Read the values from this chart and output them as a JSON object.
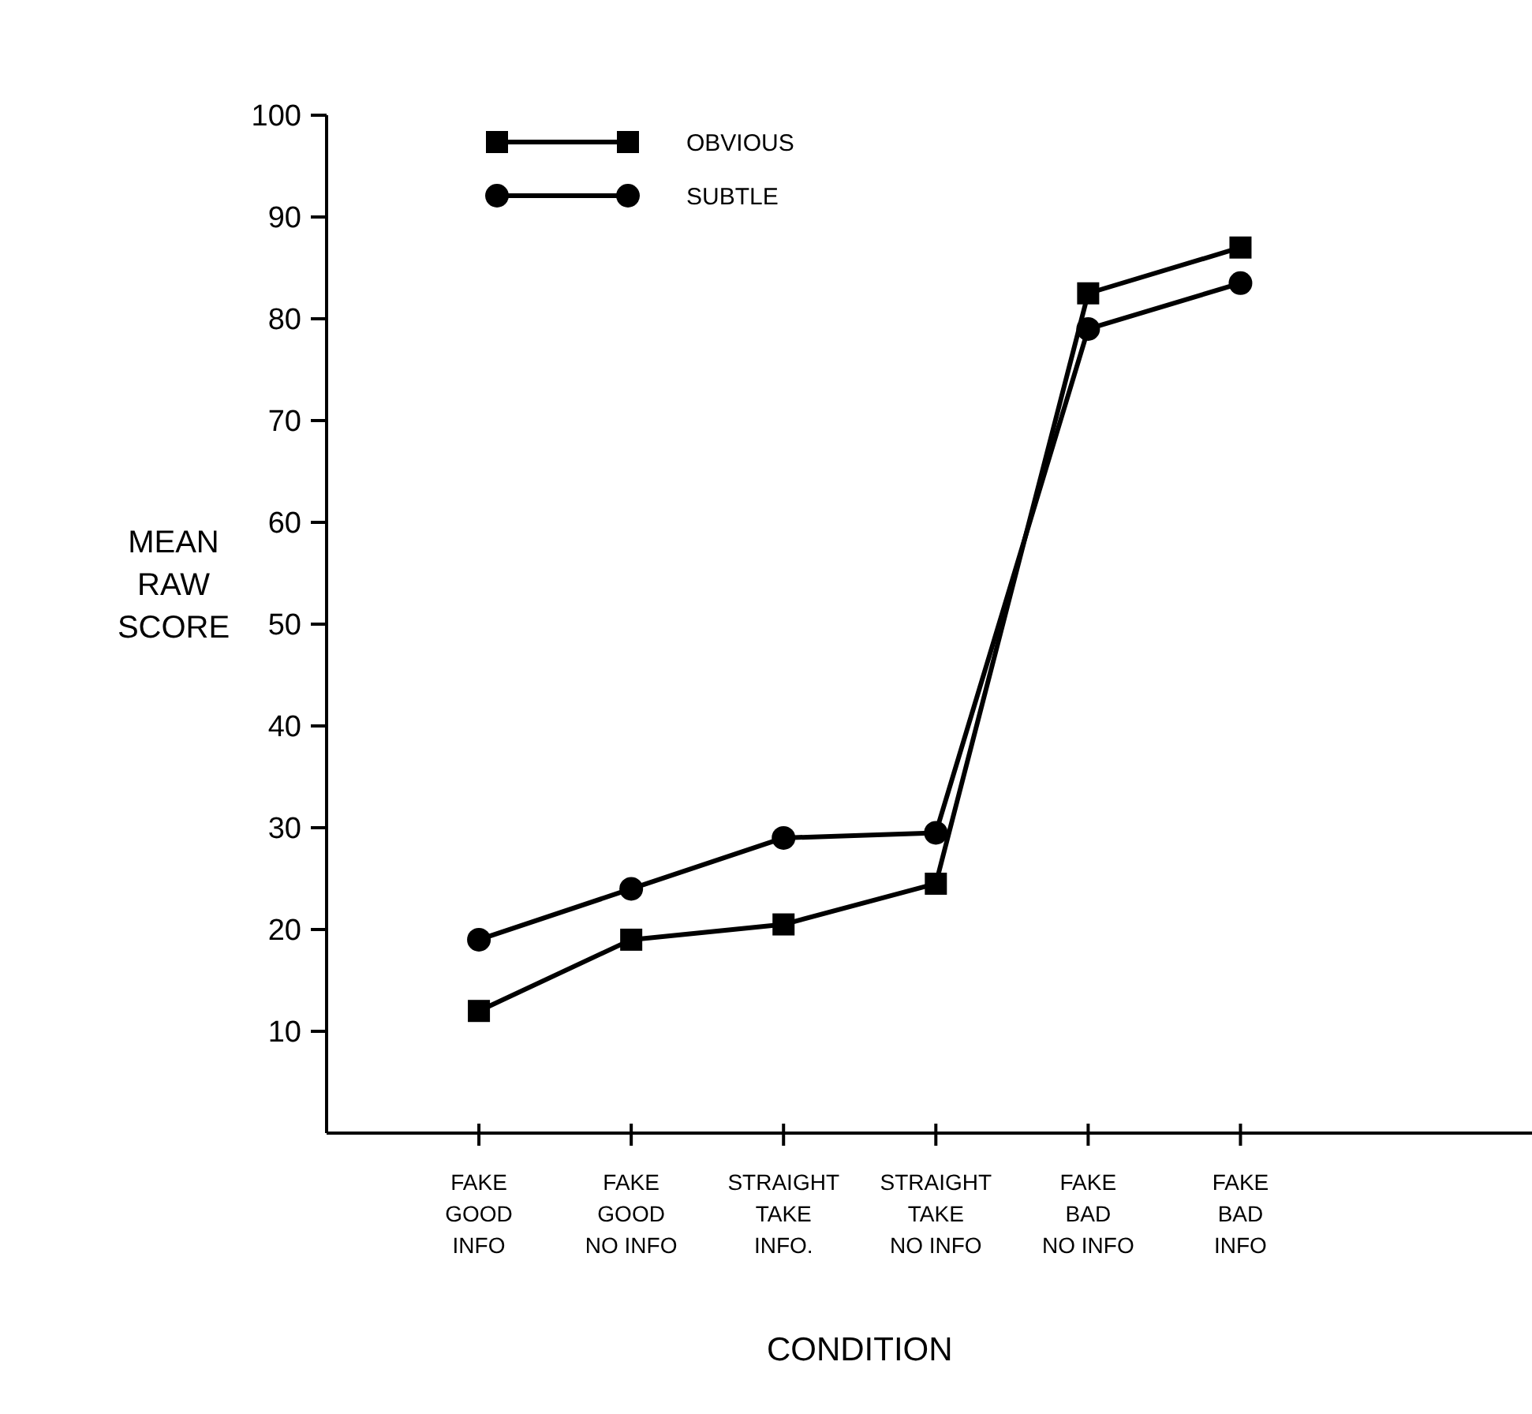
{
  "chart_data": {
    "type": "line",
    "xlabel": "CONDITION",
    "ylabel": "MEAN\nRAW\nSCORE",
    "categories": [
      "FAKE\nGOOD\nINFO",
      "FAKE\nGOOD\nNO INFO",
      "STRAIGHT\nTAKE\nINFO.",
      "STRAIGHT\nTAKE\nNO INFO",
      "FAKE\nBAD\nNO INFO",
      "FAKE\nBAD\nINFO"
    ],
    "series": [
      {
        "name": "OBVIOUS",
        "color": "#000000",
        "marker": "square",
        "values": [
          12,
          19,
          20.5,
          24.5,
          82.5,
          87
        ]
      },
      {
        "name": "SUBTLE",
        "color": "#000000",
        "marker": "circle",
        "values": [
          19,
          24,
          29,
          29.5,
          79,
          83.5
        ]
      }
    ],
    "ylim": [
      0,
      100
    ],
    "yticks": [
      10,
      20,
      30,
      40,
      50,
      60,
      70,
      80,
      90,
      100
    ],
    "legend": "top left",
    "grid": false,
    "line_style": "solid"
  }
}
